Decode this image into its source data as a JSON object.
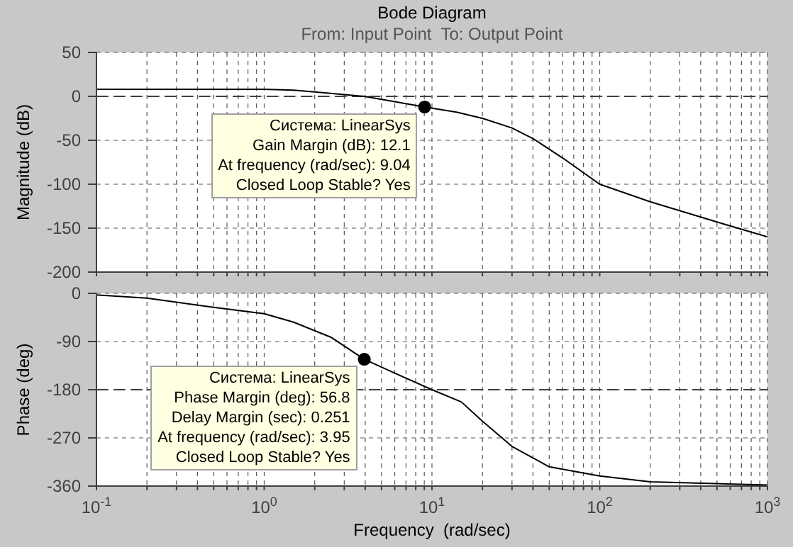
{
  "chart_data": [
    {
      "type": "line",
      "title": "Bode Diagram",
      "subtitle": "From: Input Point  To: Output Point",
      "ylabel": "Magnitude (dB)",
      "xlim": [
        0.1,
        1000
      ],
      "xticks": [
        {
          "value": 0.1,
          "label": null
        },
        {
          "value": 0.2,
          "label": null
        },
        {
          "value": 0.3,
          "label": null
        },
        {
          "value": 0.4,
          "label": null
        },
        {
          "value": 0.5,
          "label": null
        },
        {
          "value": 0.6,
          "label": null
        },
        {
          "value": 0.7,
          "label": null
        },
        {
          "value": 0.8,
          "label": null
        },
        {
          "value": 0.9,
          "label": null
        },
        {
          "value": 1,
          "label": null
        },
        {
          "value": 2,
          "label": null
        },
        {
          "value": 3,
          "label": null
        },
        {
          "value": 4,
          "label": null
        },
        {
          "value": 5,
          "label": null
        },
        {
          "value": 6,
          "label": null
        },
        {
          "value": 7,
          "label": null
        },
        {
          "value": 8,
          "label": null
        },
        {
          "value": 9,
          "label": null
        },
        {
          "value": 10,
          "label": null
        },
        {
          "value": 20,
          "label": null
        },
        {
          "value": 30,
          "label": null
        },
        {
          "value": 40,
          "label": null
        },
        {
          "value": 50,
          "label": null
        },
        {
          "value": 60,
          "label": null
        },
        {
          "value": 70,
          "label": null
        },
        {
          "value": 80,
          "label": null
        },
        {
          "value": 90,
          "label": null
        },
        {
          "value": 100,
          "label": null
        },
        {
          "value": 200,
          "label": null
        },
        {
          "value": 300,
          "label": null
        },
        {
          "value": 400,
          "label": null
        },
        {
          "value": 500,
          "label": null
        },
        {
          "value": 600,
          "label": null
        },
        {
          "value": 700,
          "label": null
        },
        {
          "value": 800,
          "label": null
        },
        {
          "value": 900,
          "label": null
        },
        {
          "value": 1000,
          "label": null
        }
      ],
      "ylim": [
        -200,
        50
      ],
      "yticks": [
        50,
        0,
        -50,
        -100,
        -150,
        -200
      ],
      "log": "x",
      "grid": true,
      "tick_labels": "y",
      "series": [
        {
          "type": "line",
          "color": "#000000",
          "marker": "none",
          "x": [
            0.1,
            0.3,
            0.5,
            1,
            1.5,
            2,
            3,
            3.95,
            6,
            9.04,
            14,
            20,
            30,
            40,
            60,
            100,
            200,
            500,
            1000
          ],
          "values": [
            8,
            8,
            8,
            8,
            7,
            5,
            2,
            0,
            -6,
            -12.1,
            -18,
            -25,
            -36,
            -48,
            -70,
            -100,
            -120,
            -143,
            -160
          ]
        },
        {
          "type": "scatter",
          "color": "#000000",
          "marker": "circle",
          "x": [
            9.04
          ],
          "values": [
            -12.1
          ]
        }
      ],
      "ref_lines": [
        {
          "axis": "y",
          "value": 0,
          "color": "#404040",
          "line_style": "dashed"
        }
      ],
      "annotations": [
        {
          "text": "Система: LinearSys\nGain Margin (dB): 12.1\nAt frequency (rad/sec): 9.04\nClosed Loop Stable? Yes",
          "x": 9.04,
          "y": -12.1
        }
      ]
    },
    {
      "type": "line",
      "xlabel": "Frequency  (rad/sec)",
      "ylabel": "Phase (deg)",
      "xlim": [
        0.1,
        1000
      ],
      "xticks": [
        {
          "value": 0.1,
          "label": "10$^{-1}$"
        },
        {
          "value": 0.2,
          "label": null
        },
        {
          "value": 0.3,
          "label": null
        },
        {
          "value": 0.4,
          "label": null
        },
        {
          "value": 0.5,
          "label": null
        },
        {
          "value": 0.6,
          "label": null
        },
        {
          "value": 0.7,
          "label": null
        },
        {
          "value": 0.8,
          "label": null
        },
        {
          "value": 0.9,
          "label": null
        },
        {
          "value": 1,
          "label": "10$^{0}$"
        },
        {
          "value": 2,
          "label": null
        },
        {
          "value": 3,
          "label": null
        },
        {
          "value": 4,
          "label": null
        },
        {
          "value": 5,
          "label": null
        },
        {
          "value": 6,
          "label": null
        },
        {
          "value": 7,
          "label": null
        },
        {
          "value": 8,
          "label": null
        },
        {
          "value": 9,
          "label": null
        },
        {
          "value": 10,
          "label": "10$^{1}$"
        },
        {
          "value": 20,
          "label": null
        },
        {
          "value": 30,
          "label": null
        },
        {
          "value": 40,
          "label": null
        },
        {
          "value": 50,
          "label": null
        },
        {
          "value": 60,
          "label": null
        },
        {
          "value": 70,
          "label": null
        },
        {
          "value": 80,
          "label": null
        },
        {
          "value": 90,
          "label": null
        },
        {
          "value": 100,
          "label": "10$^{2}$"
        },
        {
          "value": 200,
          "label": null
        },
        {
          "value": 300,
          "label": null
        },
        {
          "value": 400,
          "label": null
        },
        {
          "value": 500,
          "label": null
        },
        {
          "value": 600,
          "label": null
        },
        {
          "value": 700,
          "label": null
        },
        {
          "value": 800,
          "label": null
        },
        {
          "value": 900,
          "label": null
        },
        {
          "value": 1000,
          "label": "10$^{3}$"
        }
      ],
      "ylim": [
        -360,
        0
      ],
      "yticks": [
        0,
        -90,
        -180,
        -270,
        -360
      ],
      "log": "x",
      "grid": true,
      "series": [
        {
          "type": "line",
          "color": "#000000",
          "marker": "none",
          "x": [
            0.1,
            0.2,
            0.5,
            1,
            1.5,
            2.5,
            3.95,
            6,
            10,
            15,
            20,
            30,
            50,
            100,
            200,
            1000
          ],
          "values": [
            -3,
            -9,
            -26,
            -38,
            -54,
            -82,
            -123.2,
            -149,
            -180,
            -203,
            -239,
            -286,
            -324,
            -341,
            -352,
            -358
          ]
        },
        {
          "type": "scatter",
          "color": "#000000",
          "marker": "circle",
          "x": [
            3.95
          ],
          "values": [
            -123.2
          ]
        }
      ],
      "ref_lines": [
        {
          "axis": "y",
          "value": -180,
          "color": "#404040",
          "line_style": "dashed"
        }
      ],
      "annotations": [
        {
          "text": "Система: LinearSys\nPhase Margin (deg): 56.8\nDelay Margin (sec): 0.251\nAt frequency (rad/sec): 3.95\nClosed Loop Stable? Yes",
          "x": 3.95,
          "y": -123.2
        }
      ]
    }
  ]
}
